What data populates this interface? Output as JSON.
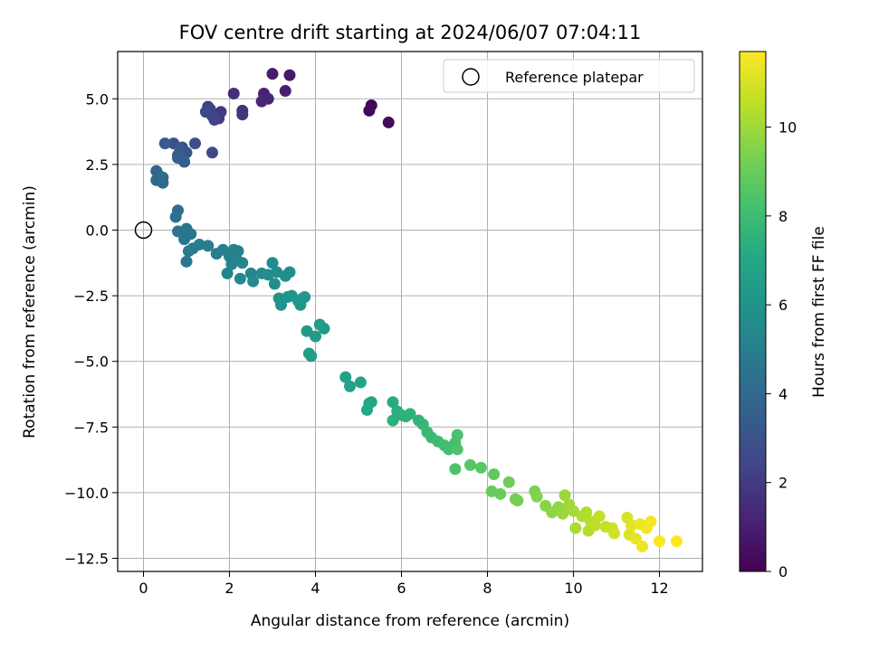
{
  "chart_data": {
    "type": "scatter",
    "title": "FOV centre drift starting at 2024/06/07 07:04:11",
    "xlabel": "Angular distance from reference (arcmin)",
    "ylabel": "Rotation from reference (arcmin)",
    "xlim": [
      -0.6,
      13.0
    ],
    "ylim": [
      -13.0,
      6.8
    ],
    "xticks": [
      0,
      2,
      4,
      6,
      8,
      10,
      12
    ],
    "xtick_labels": [
      "0",
      "2",
      "4",
      "6",
      "8",
      "10",
      "12"
    ],
    "yticks": [
      5.0,
      2.5,
      0.0,
      -2.5,
      -5.0,
      -7.5,
      -10.0,
      -12.5
    ],
    "ytick_labels": [
      "5.0",
      "2.5",
      "0.0",
      "−2.5",
      "−5.0",
      "−7.5",
      "−10.0",
      "−12.5"
    ],
    "grid": true,
    "legend": {
      "placement": "top-right",
      "entries": [
        "Reference platepar"
      ]
    },
    "reference_point": {
      "x": 0,
      "y": 0
    },
    "colorbar": {
      "label": "Hours from first FF file",
      "colormap": "viridis",
      "range": [
        0,
        11.7
      ],
      "ticks": [
        0,
        2,
        4,
        6,
        8,
        10
      ],
      "tick_labels": [
        "0",
        "2",
        "4",
        "6",
        "8",
        "10"
      ]
    },
    "series": [
      {
        "points": [
          [
            5.3,
            4.75,
            0.1
          ],
          [
            5.25,
            4.55,
            0.2
          ],
          [
            5.7,
            4.1,
            0.3
          ],
          [
            3.4,
            5.9,
            0.8
          ],
          [
            3.0,
            5.95,
            0.9
          ],
          [
            3.3,
            5.3,
            1.0
          ],
          [
            2.8,
            5.2,
            1.1
          ],
          [
            2.9,
            5.0,
            1.2
          ],
          [
            2.75,
            4.9,
            1.3
          ],
          [
            2.1,
            5.2,
            1.5
          ],
          [
            2.3,
            4.55,
            1.7
          ],
          [
            2.3,
            4.4,
            1.8
          ],
          [
            1.8,
            4.5,
            1.9
          ],
          [
            1.75,
            4.25,
            2.0
          ],
          [
            1.5,
            4.7,
            2.1
          ],
          [
            1.6,
            4.35,
            2.2
          ],
          [
            1.55,
            4.6,
            2.3
          ],
          [
            1.65,
            4.2,
            2.4
          ],
          [
            1.45,
            4.5,
            2.5
          ],
          [
            1.6,
            2.95,
            2.6
          ],
          [
            1.2,
            3.3,
            2.8
          ],
          [
            0.7,
            3.3,
            2.9
          ],
          [
            0.9,
            3.15,
            3.0
          ],
          [
            1.0,
            2.95,
            3.1
          ],
          [
            0.8,
            2.85,
            3.2
          ],
          [
            0.85,
            3.05,
            3.3
          ],
          [
            0.5,
            3.3,
            3.4
          ],
          [
            0.95,
            2.6,
            3.5
          ],
          [
            0.8,
            2.75,
            3.6
          ],
          [
            0.3,
            2.25,
            3.7
          ],
          [
            0.35,
            2.1,
            3.8
          ],
          [
            0.3,
            1.9,
            3.9
          ],
          [
            0.45,
            1.8,
            4.0
          ],
          [
            0.45,
            2.0,
            4.1
          ],
          [
            0.8,
            0.75,
            4.2
          ],
          [
            0.75,
            0.5,
            4.3
          ],
          [
            0.8,
            -0.05,
            4.4
          ],
          [
            1.0,
            0.05,
            4.5
          ],
          [
            1.1,
            -0.15,
            4.6
          ],
          [
            0.95,
            -0.35,
            4.6
          ],
          [
            1.05,
            -0.8,
            4.7
          ],
          [
            1.0,
            -1.2,
            4.7
          ],
          [
            1.15,
            -0.7,
            4.8
          ],
          [
            1.3,
            -0.55,
            4.8
          ],
          [
            1.5,
            -0.6,
            4.9
          ],
          [
            1.7,
            -0.9,
            4.9
          ],
          [
            1.85,
            -0.75,
            5.0
          ],
          [
            2.0,
            -1.0,
            5.0
          ],
          [
            2.1,
            -0.75,
            5.1
          ],
          [
            2.2,
            -0.8,
            5.1
          ],
          [
            2.05,
            -1.3,
            5.2
          ],
          [
            2.15,
            -1.05,
            5.2
          ],
          [
            1.95,
            -1.65,
            5.3
          ],
          [
            2.3,
            -1.25,
            5.3
          ],
          [
            2.25,
            -1.85,
            5.4
          ],
          [
            2.5,
            -1.65,
            5.4
          ],
          [
            2.55,
            -1.95,
            5.5
          ],
          [
            2.75,
            -1.65,
            5.5
          ],
          [
            2.9,
            -1.7,
            5.6
          ],
          [
            3.0,
            -1.25,
            5.6
          ],
          [
            3.05,
            -2.05,
            5.7
          ],
          [
            3.1,
            -1.6,
            5.7
          ],
          [
            3.3,
            -1.75,
            5.8
          ],
          [
            3.4,
            -1.6,
            5.8
          ],
          [
            3.15,
            -2.6,
            5.9
          ],
          [
            3.2,
            -2.85,
            5.9
          ],
          [
            3.35,
            -2.55,
            6.0
          ],
          [
            3.45,
            -2.5,
            6.0
          ],
          [
            3.6,
            -2.7,
            6.1
          ],
          [
            3.65,
            -2.85,
            6.1
          ],
          [
            3.75,
            -2.55,
            6.2
          ],
          [
            3.7,
            -2.6,
            6.2
          ],
          [
            3.8,
            -3.85,
            6.3
          ],
          [
            4.0,
            -4.05,
            6.3
          ],
          [
            4.1,
            -3.6,
            6.4
          ],
          [
            4.2,
            -3.75,
            6.4
          ],
          [
            3.9,
            -4.8,
            6.5
          ],
          [
            3.85,
            -4.7,
            6.5
          ],
          [
            4.7,
            -5.6,
            6.7
          ],
          [
            4.8,
            -5.95,
            6.7
          ],
          [
            5.05,
            -5.8,
            6.8
          ],
          [
            5.25,
            -6.6,
            6.9
          ],
          [
            5.3,
            -6.55,
            6.9
          ],
          [
            5.2,
            -6.85,
            7.0
          ],
          [
            5.8,
            -6.55,
            7.2
          ],
          [
            5.9,
            -6.9,
            7.3
          ],
          [
            6.0,
            -7.05,
            7.4
          ],
          [
            5.8,
            -7.25,
            7.4
          ],
          [
            6.1,
            -7.1,
            7.5
          ],
          [
            6.2,
            -7.0,
            7.5
          ],
          [
            6.4,
            -7.25,
            7.6
          ],
          [
            6.5,
            -7.4,
            7.7
          ],
          [
            6.6,
            -7.7,
            7.8
          ],
          [
            6.7,
            -7.9,
            7.9
          ],
          [
            6.85,
            -8.05,
            8.0
          ],
          [
            7.0,
            -8.2,
            8.1
          ],
          [
            7.1,
            -8.35,
            8.2
          ],
          [
            7.25,
            -8.1,
            8.2
          ],
          [
            7.3,
            -7.8,
            8.3
          ],
          [
            7.25,
            -9.1,
            8.4
          ],
          [
            7.3,
            -8.35,
            8.4
          ],
          [
            7.6,
            -8.95,
            8.6
          ],
          [
            7.85,
            -9.05,
            8.7
          ],
          [
            8.15,
            -9.3,
            8.8
          ],
          [
            8.1,
            -9.95,
            8.9
          ],
          [
            8.3,
            -10.05,
            9.0
          ],
          [
            8.5,
            -9.6,
            9.1
          ],
          [
            8.65,
            -10.25,
            9.2
          ],
          [
            8.7,
            -10.3,
            9.2
          ],
          [
            9.1,
            -9.95,
            9.4
          ],
          [
            9.15,
            -10.15,
            9.5
          ],
          [
            9.35,
            -10.5,
            9.6
          ],
          [
            9.5,
            -10.75,
            9.7
          ],
          [
            9.65,
            -10.55,
            9.8
          ],
          [
            9.75,
            -10.8,
            9.9
          ],
          [
            9.8,
            -10.1,
            9.9
          ],
          [
            9.9,
            -10.45,
            10.0
          ],
          [
            10.0,
            -10.7,
            10.1
          ],
          [
            10.05,
            -11.35,
            10.2
          ],
          [
            10.2,
            -10.9,
            10.3
          ],
          [
            10.3,
            -10.75,
            10.3
          ],
          [
            10.35,
            -11.45,
            10.4
          ],
          [
            10.4,
            -11.1,
            10.4
          ],
          [
            10.5,
            -11.25,
            10.5
          ],
          [
            10.6,
            -10.9,
            10.6
          ],
          [
            10.75,
            -11.3,
            10.7
          ],
          [
            10.9,
            -11.35,
            10.8
          ],
          [
            10.95,
            -11.55,
            10.9
          ],
          [
            11.25,
            -10.95,
            11.0
          ],
          [
            11.3,
            -11.6,
            11.1
          ],
          [
            11.35,
            -11.25,
            11.2
          ],
          [
            11.45,
            -11.75,
            11.3
          ],
          [
            11.55,
            -11.2,
            11.4
          ],
          [
            11.6,
            -12.05,
            11.4
          ],
          [
            11.7,
            -11.35,
            11.5
          ],
          [
            11.8,
            -11.1,
            11.5
          ],
          [
            12.0,
            -11.85,
            11.6
          ],
          [
            12.4,
            -11.85,
            11.7
          ]
        ]
      }
    ]
  }
}
